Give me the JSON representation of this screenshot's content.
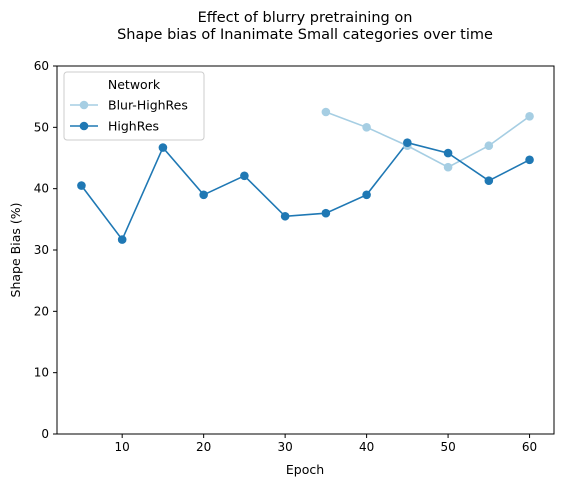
{
  "chart_data": {
    "type": "line",
    "title": "Effect of blurry pretraining on",
    "subtitle": "Shape bias of Inanimate Small categories over time",
    "xlabel": "Epoch",
    "ylabel": "Shape Bias (%)",
    "xlim": [
      2,
      63
    ],
    "ylim": [
      0,
      60
    ],
    "xticks": [
      10,
      20,
      30,
      40,
      50,
      60
    ],
    "yticks": [
      0,
      10,
      20,
      30,
      40,
      50,
      60
    ],
    "grid": false,
    "legend": {
      "title": "Network",
      "placement": "top-left"
    },
    "series": [
      {
        "name": "Blur-HighRes",
        "color": "#a6cee3",
        "marker": "circle",
        "x": [
          35,
          40,
          45,
          50,
          55,
          60
        ],
        "y": [
          52.5,
          50.0,
          47.0,
          43.5,
          47.0,
          51.8
        ]
      },
      {
        "name": "HighRes",
        "color": "#1f78b4",
        "marker": "circle",
        "x": [
          5,
          10,
          15,
          20,
          25,
          30,
          35,
          40,
          45,
          50,
          55,
          60
        ],
        "y": [
          40.5,
          31.7,
          46.7,
          39.0,
          42.1,
          35.5,
          36.0,
          39.0,
          47.5,
          45.8,
          41.3,
          44.7
        ]
      }
    ]
  }
}
